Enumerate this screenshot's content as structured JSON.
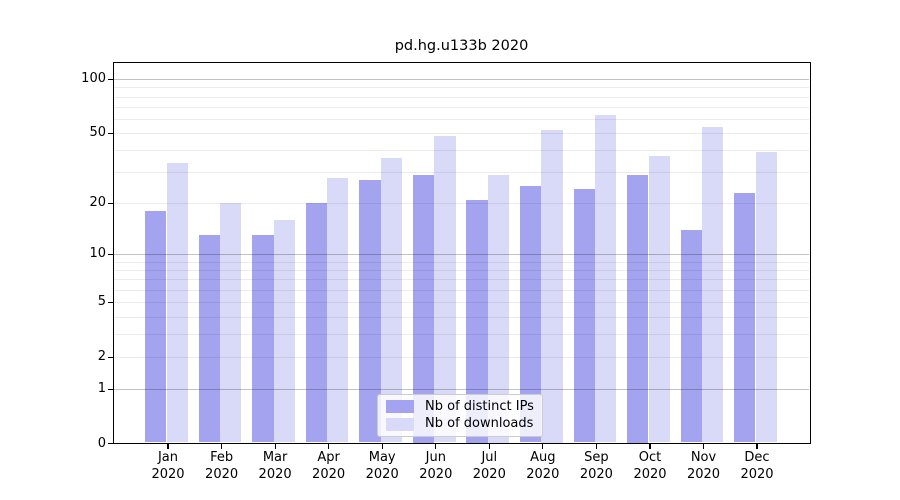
{
  "figure": {
    "title": "pd.hg.u133b 2020"
  },
  "chart_data": {
    "type": "bar",
    "title": "pd.hg.u133b 2020",
    "categories": [
      "Jan",
      "Feb",
      "Mar",
      "Apr",
      "May",
      "Jun",
      "Jul",
      "Aug",
      "Sep",
      "Oct",
      "Nov",
      "Dec"
    ],
    "category_year": "2020",
    "series": [
      {
        "name": "Nb of distinct IPs",
        "color": "#a3a3f0",
        "values": [
          18,
          13,
          13,
          20,
          27,
          29,
          21,
          25,
          24,
          29,
          14,
          23
        ]
      },
      {
        "name": "Nb of downloads",
        "color": "#d9d9f8",
        "values": [
          34,
          20,
          16,
          28,
          36,
          48,
          29,
          52,
          63,
          37,
          54,
          39
        ]
      }
    ],
    "xlabel": "",
    "ylabel": "",
    "y_axis": {
      "scale": "log1p",
      "ticks": [
        0,
        1,
        2,
        5,
        10,
        20,
        50,
        100
      ],
      "ylim": [
        0,
        124
      ],
      "gridlines_major": [
        1,
        10,
        100
      ],
      "gridlines_minor": [
        2,
        3,
        4,
        5,
        6,
        7,
        8,
        9,
        20,
        30,
        40,
        50,
        60,
        70,
        80,
        90
      ]
    },
    "legend": {
      "position": "inside-bottom-center",
      "entries": [
        "Nb of distinct IPs",
        "Nb of downloads"
      ]
    },
    "grid": true
  },
  "style": {
    "background": "#ffffff",
    "axis_color": "#000000",
    "text_color": "#000000",
    "grid_major_color": "#c3c3c3",
    "grid_minor_color": "#ececec",
    "legend_border_color": "#cccccc",
    "series1_color": "#a3a3f0",
    "series2_color": "#d9d9f8"
  }
}
